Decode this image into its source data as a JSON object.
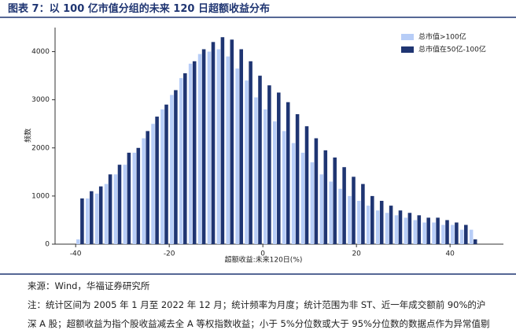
{
  "title": "图表 7：以 100 亿市值分组的未来 120 日超额收益分布",
  "chart_data": {
    "type": "bar",
    "xlabel": "超额收益:未来120日(%)",
    "ylabel": "频数",
    "x": [
      -39,
      -37,
      -35,
      -33,
      -31,
      -29,
      -27,
      -25,
      -23,
      -21,
      -19,
      -17,
      -15,
      -13,
      -11,
      -9,
      -7,
      -5,
      -3,
      -1,
      1,
      3,
      5,
      7,
      9,
      11,
      13,
      15,
      17,
      19,
      21,
      23,
      25,
      27,
      29,
      31,
      33,
      35,
      37,
      39,
      41,
      43,
      45
    ],
    "series": [
      {
        "name": "总市值>100亿",
        "color": "#b7cdf7",
        "values": [
          100,
          950,
          1050,
          1250,
          1450,
          1650,
          1900,
          2200,
          2500,
          2800,
          3100,
          3450,
          3750,
          3950,
          4000,
          4050,
          3900,
          3650,
          3400,
          3050,
          2800,
          2550,
          2350,
          2100,
          1900,
          1700,
          1450,
          1300,
          1150,
          1000,
          900,
          800,
          700,
          650,
          600,
          550,
          500,
          450,
          450,
          400,
          400,
          300,
          300
        ]
      },
      {
        "name": "总市值在50亿-100亿",
        "color": "#1f3572",
        "values": [
          950,
          1100,
          1200,
          1450,
          1650,
          1900,
          2000,
          2350,
          2650,
          2900,
          3200,
          3550,
          3800,
          4050,
          4200,
          4300,
          4250,
          4050,
          3800,
          3500,
          3300,
          3150,
          2950,
          2700,
          2450,
          2200,
          1950,
          1800,
          1600,
          1400,
          1250,
          1000,
          900,
          800,
          700,
          650,
          600,
          550,
          550,
          500,
          450,
          400,
          100
        ]
      }
    ],
    "xlim": [
      -44.4,
      51.4
    ],
    "xticks": [
      -40,
      -20,
      0,
      20,
      40
    ],
    "ylim": [
      0,
      4500
    ],
    "yticks": [
      0,
      1000,
      2000,
      3000,
      4000
    ],
    "legend": "upper right"
  },
  "source": "来源：Wind，华福证券研究所",
  "notes": [
    "注：统计区间为 2005 年 1 月至 2022 年 12 月；统计频率为月度；统计范围为非 ST、近一年成交额前 90%的沪",
    "深 A 股；超额收益为指个股收益减去全 A 等权指数收益；小于 5%分位数或大于 95%分位数的数据点作为异常值剔"
  ]
}
